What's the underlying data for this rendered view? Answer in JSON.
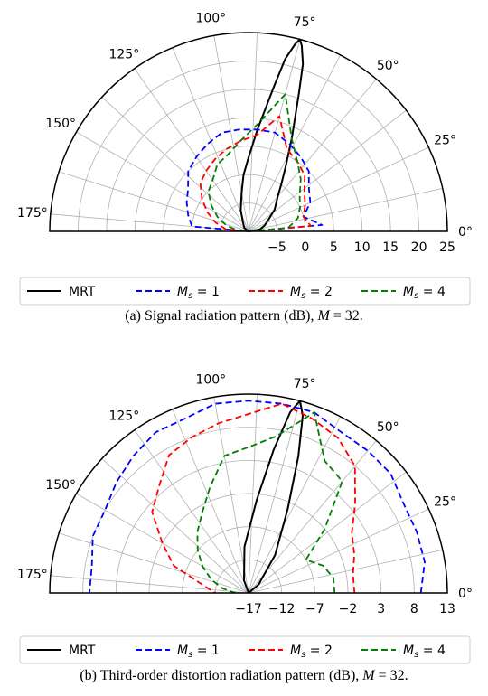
{
  "chart_data": [
    {
      "type": "polar",
      "caption": "(a) Signal radiation pattern (dB), M = 32.",
      "angle_ticks": [
        "0°",
        "25°",
        "50°",
        "75°",
        "100°",
        "125°",
        "150°",
        "175°"
      ],
      "angle_tick_values": [
        0,
        25,
        50,
        75,
        100,
        125,
        150,
        175
      ],
      "angle_range": [
        0,
        180
      ],
      "radial_range": [
        -10,
        25
      ],
      "radial_ticks": [
        "−5",
        "0",
        "5",
        "10",
        "15",
        "20",
        "25"
      ],
      "radial_tick_values": [
        -5,
        0,
        5,
        10,
        15,
        20,
        25
      ],
      "series": [
        {
          "name": "MRT",
          "color": "#000000",
          "style": "solid",
          "main_lobe_angle": 75,
          "peak_db": 25,
          "points": [
            [
              0,
              -10
            ],
            [
              10,
              -8
            ],
            [
              20,
              -7
            ],
            [
              30,
              -6
            ],
            [
              40,
              -4
            ],
            [
              50,
              -2
            ],
            [
              55,
              0
            ],
            [
              60,
              3
            ],
            [
              65,
              8
            ],
            [
              70,
              16
            ],
            [
              72,
              21
            ],
            [
              74,
              24
            ],
            [
              75,
              25
            ],
            [
              76,
              24
            ],
            [
              78,
              21
            ],
            [
              80,
              16
            ],
            [
              85,
              8
            ],
            [
              90,
              3
            ],
            [
              95,
              0
            ],
            [
              100,
              -3
            ],
            [
              110,
              -6
            ],
            [
              120,
              -8
            ],
            [
              140,
              -9
            ],
            [
              160,
              -10
            ],
            [
              180,
              -10
            ]
          ]
        },
        {
          "name": "M_s = 1",
          "color": "#0000ff",
          "style": "dashed",
          "points": [
            [
              0,
              -10
            ],
            [
              5,
              3
            ],
            [
              15,
              0
            ],
            [
              25,
              2
            ],
            [
              35,
              3
            ],
            [
              45,
              5
            ],
            [
              55,
              6
            ],
            [
              65,
              7
            ],
            [
              75,
              8
            ],
            [
              85,
              8
            ],
            [
              95,
              8
            ],
            [
              105,
              8
            ],
            [
              115,
              7
            ],
            [
              125,
              6
            ],
            [
              135,
              5
            ],
            [
              145,
              3
            ],
            [
              155,
              2
            ],
            [
              165,
              1
            ],
            [
              175,
              0
            ],
            [
              180,
              -10
            ]
          ]
        },
        {
          "name": "M_s = 2",
          "color": "#ff0000",
          "style": "dashed",
          "points": [
            [
              0,
              -10
            ],
            [
              5,
              1
            ],
            [
              15,
              0
            ],
            [
              25,
              1
            ],
            [
              35,
              2
            ],
            [
              45,
              4
            ],
            [
              55,
              5
            ],
            [
              65,
              6
            ],
            [
              75,
              11
            ],
            [
              85,
              7
            ],
            [
              95,
              6
            ],
            [
              105,
              5
            ],
            [
              115,
              4
            ],
            [
              125,
              3
            ],
            [
              135,
              2
            ],
            [
              145,
              0
            ],
            [
              155,
              -2
            ],
            [
              165,
              -4
            ],
            [
              175,
              -6
            ],
            [
              180,
              -10
            ]
          ]
        },
        {
          "name": "M_s = 4",
          "color": "#008000",
          "style": "dashed",
          "points": [
            [
              0,
              -10
            ],
            [
              5,
              -3
            ],
            [
              15,
              -1
            ],
            [
              25,
              0
            ],
            [
              35,
              1
            ],
            [
              45,
              3
            ],
            [
              55,
              5
            ],
            [
              65,
              8
            ],
            [
              75,
              15
            ],
            [
              85,
              9
            ],
            [
              95,
              6
            ],
            [
              105,
              4
            ],
            [
              115,
              3
            ],
            [
              125,
              1
            ],
            [
              135,
              0
            ],
            [
              145,
              -2
            ],
            [
              155,
              -4
            ],
            [
              165,
              -6
            ],
            [
              175,
              -8
            ],
            [
              180,
              -10
            ]
          ]
        }
      ],
      "legend": [
        "MRT",
        "M_s = 1",
        "M_s = 2",
        "M_s = 4"
      ]
    },
    {
      "type": "polar",
      "caption": "(b) Third-order distortion radiation pattern (dB), M = 32.",
      "angle_ticks": [
        "0°",
        "25°",
        "50°",
        "75°",
        "100°",
        "125°",
        "150°",
        "175°"
      ],
      "angle_tick_values": [
        0,
        25,
        50,
        75,
        100,
        125,
        150,
        175
      ],
      "angle_range": [
        0,
        180
      ],
      "radial_range": [
        -17,
        13
      ],
      "radial_ticks": [
        "−17",
        "−12",
        "−7",
        "−2",
        "3",
        "8",
        "13"
      ],
      "radial_tick_values": [
        -17,
        -12,
        -7,
        -2,
        3,
        8,
        13
      ],
      "series": [
        {
          "name": "MRT",
          "color": "#000000",
          "style": "solid",
          "main_lobe_angle": 75,
          "peak_db": 13,
          "points": [
            [
              0,
              -17
            ],
            [
              20,
              -17
            ],
            [
              40,
              -15
            ],
            [
              55,
              -10
            ],
            [
              65,
              -3
            ],
            [
              70,
              5
            ],
            [
              73,
              11
            ],
            [
              75,
              13
            ],
            [
              77,
              11
            ],
            [
              80,
              5
            ],
            [
              85,
              -3
            ],
            [
              95,
              -10
            ],
            [
              110,
              -15
            ],
            [
              130,
              -17
            ],
            [
              180,
              -17
            ]
          ]
        },
        {
          "name": "M_s = 1",
          "color": "#0000ff",
          "style": "dashed",
          "points": [
            [
              0,
              9
            ],
            [
              10,
              10
            ],
            [
              20,
              10
            ],
            [
              30,
              10
            ],
            [
              40,
              11
            ],
            [
              50,
              11
            ],
            [
              60,
              11
            ],
            [
              70,
              12
            ],
            [
              80,
              12
            ],
            [
              90,
              12
            ],
            [
              100,
              12
            ],
            [
              110,
              11
            ],
            [
              120,
              11
            ],
            [
              130,
              10
            ],
            [
              140,
              9
            ],
            [
              150,
              8
            ],
            [
              160,
              8
            ],
            [
              170,
              7
            ],
            [
              180,
              7
            ]
          ]
        },
        {
          "name": "M_s = 2",
          "color": "#ff0000",
          "style": "dashed",
          "points": [
            [
              0,
              -1
            ],
            [
              10,
              -1
            ],
            [
              20,
              0
            ],
            [
              30,
              1
            ],
            [
              40,
              4
            ],
            [
              50,
              8
            ],
            [
              60,
              10
            ],
            [
              70,
              11
            ],
            [
              80,
              12
            ],
            [
              90,
              10
            ],
            [
              100,
              9
            ],
            [
              110,
              8
            ],
            [
              120,
              7
            ],
            [
              130,
              4
            ],
            [
              140,
              2
            ],
            [
              150,
              -2
            ],
            [
              160,
              -5
            ],
            [
              170,
              -10
            ],
            [
              180,
              -12
            ]
          ]
        },
        {
          "name": "M_s = 4",
          "color": "#008000",
          "style": "dashed",
          "points": [
            [
              0,
              -4
            ],
            [
              10,
              -4
            ],
            [
              20,
              -5
            ],
            [
              30,
              -7
            ],
            [
              40,
              -2
            ],
            [
              50,
              5
            ],
            [
              60,
              6
            ],
            [
              70,
              12
            ],
            [
              80,
              7
            ],
            [
              90,
              5
            ],
            [
              100,
              4
            ],
            [
              110,
              0
            ],
            [
              120,
              -3
            ],
            [
              130,
              -5
            ],
            [
              140,
              -7
            ],
            [
              150,
              -9
            ],
            [
              160,
              -11
            ],
            [
              170,
              -13
            ],
            [
              180,
              -15
            ]
          ]
        }
      ],
      "legend": [
        "MRT",
        "M_s = 1",
        "M_s = 2",
        "M_s = 4"
      ]
    }
  ]
}
